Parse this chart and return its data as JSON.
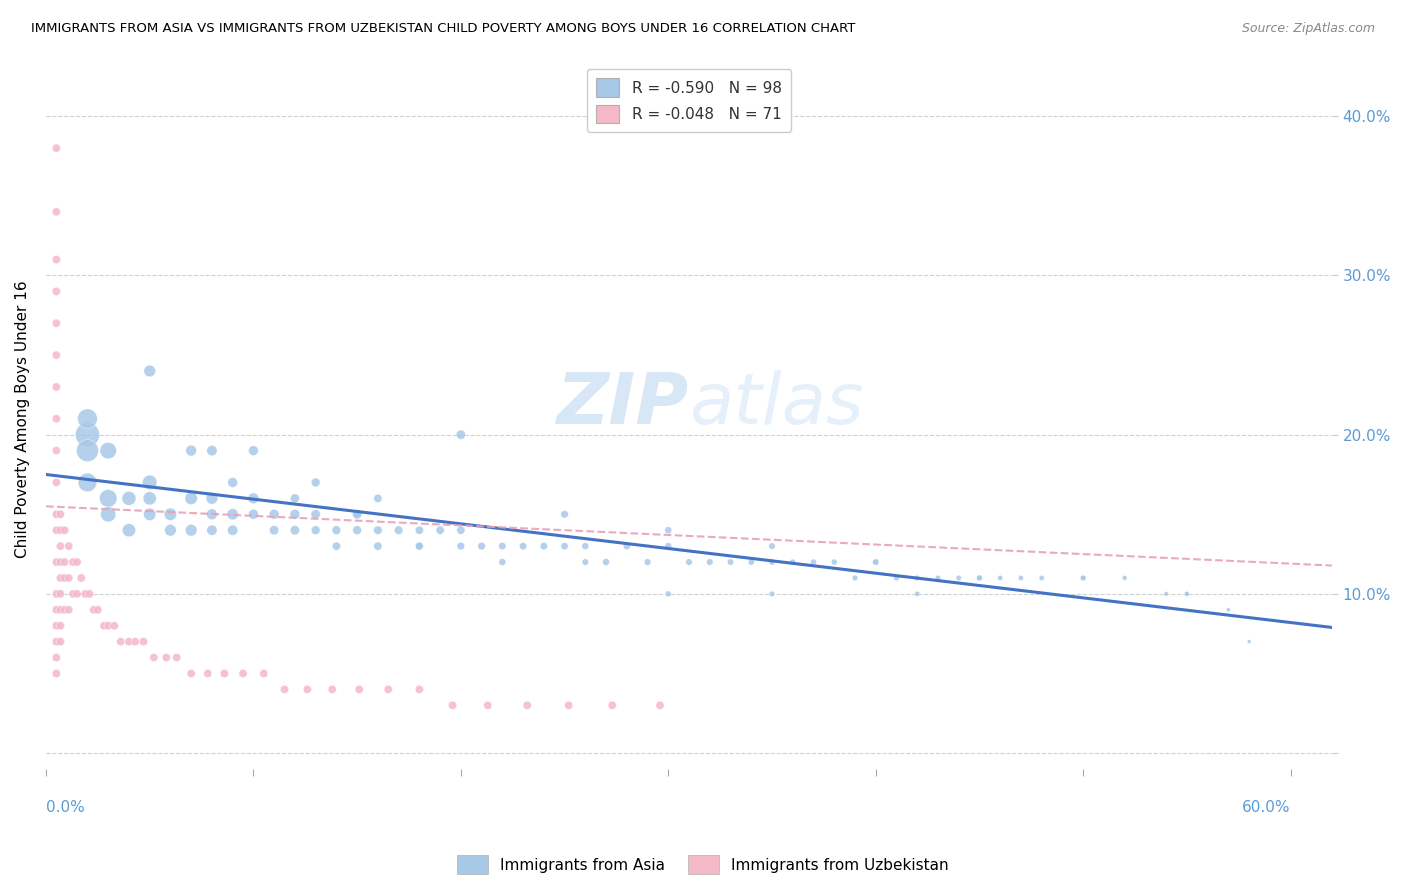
{
  "title": "IMMIGRANTS FROM ASIA VS IMMIGRANTS FROM UZBEKISTAN CHILD POVERTY AMONG BOYS UNDER 16 CORRELATION CHART",
  "source": "Source: ZipAtlas.com",
  "ylabel": "Child Poverty Among Boys Under 16",
  "watermark_zip": "ZIP",
  "watermark_atlas": "atlas",
  "asia_color": "#a8c8e8",
  "asia_color_dark": "#5b9bd5",
  "uzbekistan_color": "#f4b8c8",
  "uzbekistan_color_dark": "#e07090",
  "asia_line_color": "#4472c4",
  "uzbekistan_line_color": "#e8a0b8",
  "background_color": "#ffffff",
  "grid_color": "#d0d0d0",
  "right_axis_color": "#5b9bd5",
  "legend_asia_color": "#a8c8e8",
  "legend_uzbekistan_color": "#f4b8c8",
  "asia_R": "-0.590",
  "asia_N": "98",
  "uzbekistan_R": "-0.048",
  "uzbekistan_N": "71",
  "xlim": [
    0.0,
    0.62
  ],
  "ylim": [
    -0.01,
    0.43
  ],
  "yticks": [
    0.0,
    0.1,
    0.2,
    0.3,
    0.4
  ],
  "xticks": [
    0.0,
    0.1,
    0.2,
    0.3,
    0.4,
    0.5,
    0.6
  ],
  "asia_x": [
    0.02,
    0.02,
    0.02,
    0.02,
    0.03,
    0.03,
    0.03,
    0.04,
    0.04,
    0.05,
    0.05,
    0.05,
    0.06,
    0.06,
    0.07,
    0.07,
    0.08,
    0.08,
    0.08,
    0.09,
    0.09,
    0.1,
    0.1,
    0.11,
    0.11,
    0.12,
    0.12,
    0.13,
    0.13,
    0.14,
    0.14,
    0.15,
    0.15,
    0.16,
    0.16,
    0.17,
    0.18,
    0.18,
    0.19,
    0.2,
    0.2,
    0.21,
    0.22,
    0.23,
    0.24,
    0.25,
    0.26,
    0.27,
    0.28,
    0.29,
    0.3,
    0.31,
    0.32,
    0.33,
    0.34,
    0.35,
    0.36,
    0.37,
    0.38,
    0.39,
    0.4,
    0.41,
    0.42,
    0.43,
    0.44,
    0.45,
    0.46,
    0.47,
    0.48,
    0.5,
    0.52,
    0.54,
    0.55,
    0.57,
    0.58,
    0.08,
    0.1,
    0.13,
    0.16,
    0.2,
    0.25,
    0.3,
    0.35,
    0.4,
    0.45,
    0.5,
    0.55,
    0.05,
    0.07,
    0.09,
    0.12,
    0.15,
    0.18,
    0.22,
    0.26,
    0.3,
    0.35,
    0.42
  ],
  "asia_y": [
    0.2,
    0.19,
    0.21,
    0.17,
    0.16,
    0.19,
    0.15,
    0.16,
    0.14,
    0.17,
    0.16,
    0.15,
    0.15,
    0.14,
    0.16,
    0.14,
    0.16,
    0.15,
    0.14,
    0.15,
    0.14,
    0.16,
    0.15,
    0.15,
    0.14,
    0.15,
    0.14,
    0.15,
    0.14,
    0.14,
    0.13,
    0.15,
    0.14,
    0.14,
    0.13,
    0.14,
    0.14,
    0.13,
    0.14,
    0.14,
    0.13,
    0.13,
    0.13,
    0.13,
    0.13,
    0.13,
    0.13,
    0.12,
    0.13,
    0.12,
    0.13,
    0.12,
    0.12,
    0.12,
    0.12,
    0.12,
    0.12,
    0.12,
    0.12,
    0.11,
    0.12,
    0.11,
    0.11,
    0.11,
    0.11,
    0.11,
    0.11,
    0.11,
    0.11,
    0.11,
    0.11,
    0.1,
    0.1,
    0.09,
    0.07,
    0.19,
    0.19,
    0.17,
    0.16,
    0.2,
    0.15,
    0.14,
    0.13,
    0.12,
    0.11,
    0.11,
    0.1,
    0.24,
    0.19,
    0.17,
    0.16,
    0.15,
    0.13,
    0.12,
    0.12,
    0.1,
    0.1,
    0.1
  ],
  "asia_sizes": [
    300,
    250,
    200,
    180,
    160,
    140,
    120,
    100,
    90,
    110,
    90,
    80,
    80,
    70,
    80,
    70,
    70,
    60,
    55,
    65,
    55,
    60,
    50,
    50,
    45,
    50,
    45,
    45,
    40,
    40,
    35,
    45,
    40,
    38,
    35,
    38,
    35,
    32,
    35,
    35,
    30,
    30,
    28,
    28,
    27,
    27,
    25,
    25,
    25,
    23,
    25,
    22,
    22,
    20,
    20,
    20,
    18,
    18,
    18,
    17,
    18,
    16,
    16,
    15,
    15,
    15,
    14,
    14,
    14,
    13,
    12,
    11,
    10,
    9,
    8,
    55,
    50,
    40,
    35,
    45,
    30,
    25,
    22,
    20,
    18,
    16,
    12,
    70,
    60,
    50,
    42,
    38,
    30,
    25,
    22,
    18,
    16,
    14
  ],
  "uzbekistan_x": [
    0.005,
    0.005,
    0.005,
    0.005,
    0.005,
    0.005,
    0.005,
    0.005,
    0.005,
    0.005,
    0.005,
    0.005,
    0.005,
    0.005,
    0.005,
    0.005,
    0.005,
    0.005,
    0.005,
    0.007,
    0.007,
    0.007,
    0.007,
    0.007,
    0.007,
    0.007,
    0.007,
    0.007,
    0.009,
    0.009,
    0.009,
    0.009,
    0.011,
    0.011,
    0.011,
    0.013,
    0.013,
    0.015,
    0.015,
    0.017,
    0.019,
    0.021,
    0.023,
    0.025,
    0.028,
    0.03,
    0.033,
    0.036,
    0.04,
    0.043,
    0.047,
    0.052,
    0.058,
    0.063,
    0.07,
    0.078,
    0.086,
    0.095,
    0.105,
    0.115,
    0.126,
    0.138,
    0.151,
    0.165,
    0.18,
    0.196,
    0.213,
    0.232,
    0.252,
    0.273,
    0.296
  ],
  "uzbekistan_y": [
    0.38,
    0.34,
    0.31,
    0.29,
    0.27,
    0.25,
    0.23,
    0.21,
    0.19,
    0.17,
    0.15,
    0.14,
    0.12,
    0.1,
    0.09,
    0.08,
    0.07,
    0.06,
    0.05,
    0.15,
    0.14,
    0.13,
    0.12,
    0.11,
    0.1,
    0.09,
    0.08,
    0.07,
    0.14,
    0.12,
    0.11,
    0.09,
    0.13,
    0.11,
    0.09,
    0.12,
    0.1,
    0.12,
    0.1,
    0.11,
    0.1,
    0.1,
    0.09,
    0.09,
    0.08,
    0.08,
    0.08,
    0.07,
    0.07,
    0.07,
    0.07,
    0.06,
    0.06,
    0.06,
    0.05,
    0.05,
    0.05,
    0.05,
    0.05,
    0.04,
    0.04,
    0.04,
    0.04,
    0.04,
    0.04,
    0.03,
    0.03,
    0.03,
    0.03,
    0.03,
    0.03
  ],
  "uzbekistan_sizes": [
    35,
    35,
    35,
    35,
    35,
    35,
    35,
    35,
    35,
    35,
    35,
    35,
    35,
    35,
    35,
    35,
    35,
    35,
    35,
    35,
    35,
    35,
    35,
    35,
    35,
    35,
    35,
    35,
    35,
    35,
    35,
    35,
    35,
    35,
    35,
    35,
    35,
    35,
    35,
    35,
    35,
    35,
    35,
    35,
    35,
    35,
    35,
    35,
    35,
    35,
    35,
    35,
    35,
    35,
    35,
    35,
    35,
    35,
    35,
    35,
    35,
    35,
    35,
    35,
    35,
    35,
    35,
    35,
    35,
    35,
    35
  ]
}
